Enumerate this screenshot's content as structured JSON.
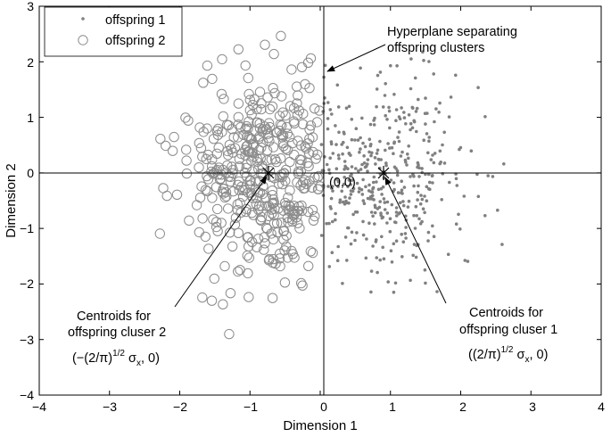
{
  "chart_data": {
    "type": "scatter",
    "xlabel": "Dimension 1",
    "ylabel": "Dimension 2",
    "xlim": [
      -4,
      4
    ],
    "ylim": [
      -4,
      3
    ],
    "xticks": [
      "−4",
      "−3",
      "−2",
      "−1",
      "0",
      "1",
      "2",
      "3",
      "4"
    ],
    "yticks": [
      "3",
      "2",
      "1",
      "0",
      "−1",
      "−2",
      "−3",
      "−4"
    ],
    "grid": false,
    "legend_position": "top-left",
    "legend": [
      "offspring 1",
      "offspring 2"
    ],
    "colors": {
      "offspring1": "#808080",
      "offspring2": "#8c8c8c",
      "axes": "#000000"
    },
    "series": [
      {
        "name": "offspring 1",
        "marker": "dot",
        "seed": 7,
        "count": 420,
        "mean_x": 0.8,
        "sd_x": 0.6,
        "sd_y": 0.95,
        "x_min": 0.0,
        "x_max": 3.6,
        "y_min": -2.6,
        "y_max": 2.3
      },
      {
        "name": "offspring 2",
        "marker": "open-circle",
        "seed": 19,
        "count": 420,
        "mean_x": -0.8,
        "sd_x": 0.6,
        "sd_y": 0.95,
        "x_min": -3.4,
        "x_max": 0.0,
        "y_min": -3.4,
        "y_max": 2.85
      }
    ],
    "centroids": [
      {
        "label": "centroid-offspring-2",
        "x": -0.8,
        "y": 0
      },
      {
        "label": "centroid-offspring-1",
        "x": 0.8,
        "y": 0
      }
    ],
    "annotations": {
      "hyperplane_line1": "Hyperplane separating",
      "hyperplane_line2": "offspring clusters",
      "origin_label": "(0,0)",
      "centroid2_line1": "Centroids for",
      "centroid2_line2": "offspring cluser 2",
      "centroid2_formula_prefix": "(−(2/π)",
      "centroid2_formula_sup": "1/2",
      "centroid2_formula_sigma": " σ",
      "centroid2_formula_sub": "x",
      "centroid2_formula_suffix": ", 0)",
      "centroid1_line1": "Centroids for",
      "centroid1_line2": "offspring cluser 1",
      "centroid1_formula_prefix": "((2/π)",
      "centroid1_formula_sup": "1/2",
      "centroid1_formula_sigma": " σ",
      "centroid1_formula_sub": "x",
      "centroid1_formula_suffix": ", 0)"
    }
  }
}
